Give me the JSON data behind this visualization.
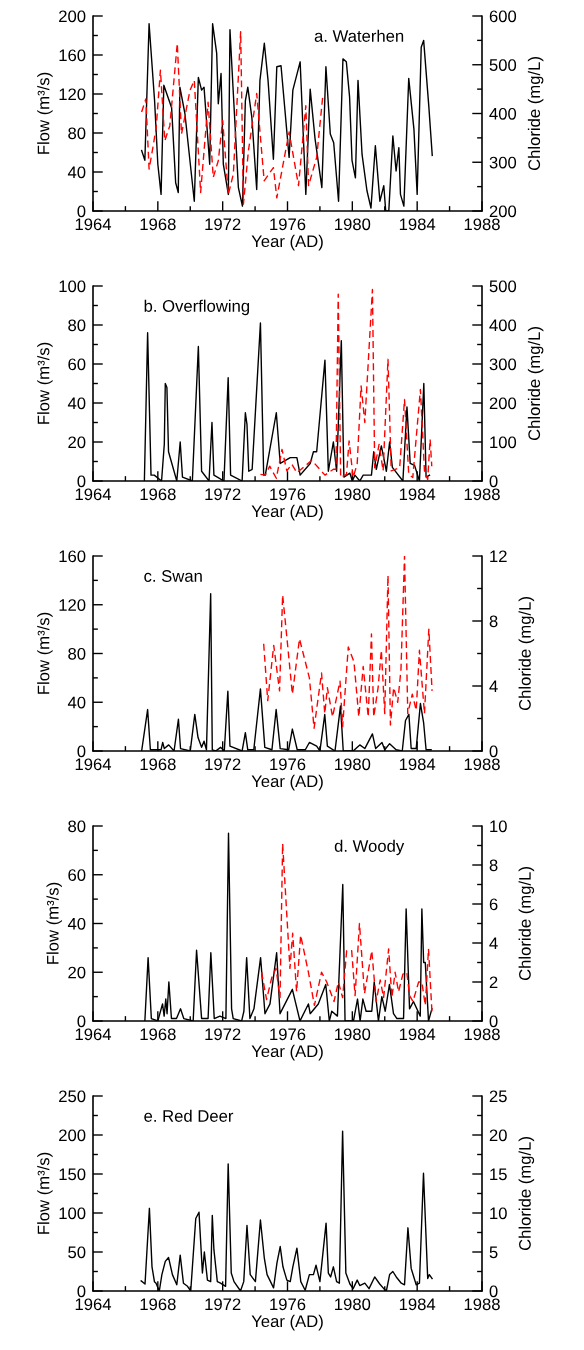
{
  "chart_data": [
    {
      "type": "line",
      "title": "a. Waterhen",
      "xlabel": "Year (AD)",
      "ylabel": "Flow (m³/s)",
      "y2label": "Chloride (mg/L)",
      "xlim": [
        1964,
        1988
      ],
      "xticks": [
        1964,
        {
          "value": 1966,
          "label": null
        },
        1968,
        {
          "value": 1970,
          "label": null
        },
        1972,
        {
          "value": 1974,
          "label": null
        },
        1976,
        {
          "value": 1978,
          "label": null
        },
        1980,
        {
          "value": 1982,
          "label": null
        },
        1984,
        {
          "value": 1986,
          "label": null
        },
        1988
      ],
      "ylim": [
        0,
        200
      ],
      "yticks": [
        0,
        {
          "value": 20,
          "label": null
        },
        40,
        {
          "value": 60,
          "label": null
        },
        80,
        {
          "value": 100,
          "label": null
        },
        120,
        {
          "value": 140,
          "label": null
        },
        160,
        {
          "value": 180,
          "label": null
        },
        200
      ],
      "y2lim": [
        200,
        600
      ],
      "y2ticks": [
        200,
        {
          "value": 250,
          "label": null
        },
        300,
        {
          "value": 350,
          "label": null
        },
        400,
        {
          "value": 450,
          "label": null
        },
        500,
        {
          "value": 550,
          "label": null
        },
        600
      ],
      "series": [
        {
          "color": "#000000",
          "line_style": "solid",
          "x": [
            1967.0,
            1967.2,
            1967.46,
            1967.8,
            1968.0,
            1968.2,
            1968.37,
            1968.85,
            1969.1,
            1969.26,
            1969.36,
            1969.67,
            1970.25,
            1970.5,
            1970.7,
            1970.85,
            1971.2,
            1971.38,
            1971.63,
            1971.73,
            1971.9,
            1972.04,
            1972.35,
            1972.45,
            1972.66,
            1972.97,
            1973.22,
            1973.4,
            1973.55,
            1973.8,
            1974.1,
            1974.3,
            1974.57,
            1974.8,
            1975.13,
            1975.34,
            1975.6,
            1976.1,
            1976.33,
            1976.78,
            1977.13,
            1977.4,
            1977.7,
            1978.12,
            1978.37,
            1978.64,
            1978.85,
            1979.15,
            1979.42,
            1979.63,
            1979.83,
            1979.98,
            1980.19,
            1980.35,
            1980.6,
            1980.9,
            1981.15,
            1981.42,
            1981.7,
            1981.94,
            1982.06,
            1982.25,
            1982.5,
            1982.7,
            1982.87,
            1982.97,
            1983.18,
            1983.48,
            1983.8,
            1984.0,
            1984.25,
            1984.4,
            1984.72,
            1984.93
          ],
          "values": [
            62,
            52,
            192,
            113,
            48,
            17,
            129,
            106,
            29,
            19,
            127,
            100,
            10,
            137,
            124,
            127,
            48,
            192,
            162,
            110,
            141,
            48,
            17,
            186,
            120,
            24,
            5,
            113,
            127,
            96,
            22,
            134,
            172,
            134,
            53,
            148,
            149,
            55,
            124,
            153,
            17,
            125,
            74,
            24,
            148,
            79,
            70,
            10,
            156,
            153,
            117,
            52,
            34,
            134,
            58,
            21,
            3,
            67,
            10,
            26,
            0,
            0,
            77,
            41,
            65,
            17,
            5,
            136,
            84,
            17,
            168,
            175,
            107,
            57
          ]
        },
        {
          "color": "#ff0000",
          "line_style": "dashed",
          "axis": "y2",
          "x": [
            1967.0,
            1967.26,
            1967.46,
            1967.7,
            1967.9,
            1968.16,
            1968.43,
            1968.74,
            1969.2,
            1969.46,
            1969.98,
            1970.25,
            1970.64,
            1971.1,
            1971.42,
            1971.73,
            1972.0,
            1972.35,
            1972.66,
            1973.11,
            1973.28,
            1973.59,
            1974.1,
            1974.56,
            1975.13,
            1975.34,
            1976.1,
            1976.68,
            1977.13,
            1977.3,
            1977.8,
            1978.18
          ],
          "values": [
            403,
            430,
            286,
            331,
            372,
            489,
            344,
            375,
            544,
            358,
            447,
            468,
            238,
            423,
            269,
            303,
            386,
            234,
            276,
            568,
            214,
            324,
            441,
            262,
            289,
            227,
            362,
            252,
            416,
            252,
            310,
            437
          ]
        }
      ]
    },
    {
      "type": "line",
      "title": "b. Overflowing",
      "xlabel": "Year (AD)",
      "ylabel": "Flow (m³/s)",
      "y2label": "Chloride (mg/L)",
      "xlim": [
        1964,
        1988
      ],
      "xticks": [
        1964,
        {
          "value": 1966,
          "label": null
        },
        1968,
        {
          "value": 1970,
          "label": null
        },
        1972,
        {
          "value": 1974,
          "label": null
        },
        1976,
        {
          "value": 1978,
          "label": null
        },
        1980,
        {
          "value": 1982,
          "label": null
        },
        1984,
        {
          "value": 1986,
          "label": null
        },
        1988
      ],
      "ylim": [
        0,
        100
      ],
      "yticks": [
        0,
        {
          "value": 10,
          "label": null
        },
        20,
        {
          "value": 30,
          "label": null
        },
        40,
        {
          "value": 50,
          "label": null
        },
        60,
        {
          "value": 70,
          "label": null
        },
        80,
        {
          "value": 90,
          "label": null
        },
        100
      ],
      "y2lim": [
        0,
        500
      ],
      "y2ticks": [
        0,
        {
          "value": 50,
          "label": null
        },
        100,
        {
          "value": 150,
          "label": null
        },
        200,
        {
          "value": 250,
          "label": null
        },
        300,
        {
          "value": 350,
          "label": null
        },
        400,
        {
          "value": 450,
          "label": null
        },
        500
      ],
      "series": [
        {
          "color": "#000000",
          "line_style": "solid",
          "x": [
            1967.17,
            1967.37,
            1967.58,
            1967.78,
            1968.23,
            1968.4,
            1968.46,
            1968.56,
            1968.66,
            1969.17,
            1969.38,
            1969.52,
            1970.13,
            1970.5,
            1970.7,
            1971.16,
            1971.34,
            1971.46,
            1972.08,
            1972.34,
            1972.49,
            1973.2,
            1973.4,
            1973.5,
            1973.61,
            1973.82,
            1974.33,
            1974.53,
            1974.63,
            1975.31,
            1975.55,
            1976.17,
            1976.58,
            1976.78,
            1977.4,
            1977.6,
            1977.8,
            1978.31,
            1978.52,
            1978.83,
            1979.03,
            1979.32,
            1979.48,
            1979.85,
            1980.0,
            1980.16,
            1980.46,
            1980.67,
            1981.18,
            1981.32,
            1981.48,
            1981.79,
            1982.1,
            1982.3,
            1982.47,
            1983.12,
            1983.37,
            1983.57,
            1983.84,
            1984.14,
            1984.41,
            1984.55,
            1984.76
          ],
          "values": [
            0,
            76,
            3,
            3,
            0,
            19,
            50,
            48,
            15,
            0,
            20,
            2,
            0,
            69,
            5,
            0,
            30,
            3,
            0,
            53,
            3,
            0,
            35,
            29,
            5,
            6,
            81,
            3,
            3,
            35,
            9,
            12,
            12,
            3,
            9,
            15,
            15,
            62,
            5,
            20,
            5,
            72,
            2,
            4,
            0,
            3,
            0,
            3,
            3,
            15,
            6,
            18,
            5,
            20,
            7,
            0,
            38,
            9,
            8,
            0,
            50,
            2,
            3
          ]
        },
        {
          "color": "#ff0000",
          "line_style": "dashed",
          "axis": "y2",
          "x": [
            1974.33,
            1974.63,
            1974.9,
            1975.31,
            1975.66,
            1975.96,
            1976.27,
            1976.58,
            1977.5,
            1978.31,
            1978.83,
            1978.99,
            1979.13,
            1979.28,
            1979.64,
            1979.8,
            1980.05,
            1980.3,
            1980.54,
            1980.77,
            1981.24,
            1981.38,
            1981.65,
            1981.9,
            1982.2,
            1982.4,
            1982.92,
            1983.22,
            1983.48,
            1983.73,
            1984.2,
            1984.45,
            1984.65,
            1984.8,
            1984.9
          ],
          "values": [
            17,
            15,
            38,
            7,
            81,
            26,
            43,
            21,
            53,
            15,
            30,
            30,
            479,
            9,
            17,
            103,
            9,
            44,
            244,
            150,
            491,
            34,
            94,
            26,
            312,
            26,
            34,
            209,
            17,
            9,
            235,
            26,
            4,
            107,
            38
          ]
        }
      ]
    },
    {
      "type": "line",
      "title": "c. Swan",
      "xlabel": "Year (AD)",
      "ylabel": "Flow (m³/s)",
      "y2label": "Chloride (mg/L)",
      "xlim": [
        1964,
        1988
      ],
      "xticks": [
        1964,
        {
          "value": 1966,
          "label": null
        },
        1968,
        {
          "value": 1970,
          "label": null
        },
        1972,
        {
          "value": 1974,
          "label": null
        },
        1976,
        {
          "value": 1978,
          "label": null
        },
        1980,
        {
          "value": 1982,
          "label": null
        },
        1984,
        {
          "value": 1986,
          "label": null
        },
        1988
      ],
      "ylim": [
        0,
        160
      ],
      "yticks": [
        0,
        {
          "value": 20,
          "label": null
        },
        40,
        {
          "value": 60,
          "label": null
        },
        80,
        {
          "value": 100,
          "label": null
        },
        120,
        {
          "value": 140,
          "label": null
        },
        160
      ],
      "y2lim": [
        0,
        12
      ],
      "y2ticks": [
        0,
        {
          "value": 2,
          "label": null
        },
        4,
        {
          "value": 6,
          "label": null
        },
        8,
        {
          "value": 10,
          "label": null
        },
        12
      ],
      "series": [
        {
          "color": "#000000",
          "line_style": "solid",
          "x": [
            1967.0,
            1967.37,
            1967.54,
            1968.2,
            1968.3,
            1968.4,
            1968.67,
            1969.0,
            1969.27,
            1969.4,
            1970.0,
            1970.28,
            1970.48,
            1970.7,
            1970.85,
            1971.0,
            1971.26,
            1971.36,
            1971.57,
            1971.87,
            1972.1,
            1972.32,
            1972.45,
            1973.2,
            1973.4,
            1973.55,
            1973.92,
            1974.33,
            1974.6,
            1975.04,
            1975.3,
            1975.55,
            1976.07,
            1976.3,
            1976.6,
            1977.1,
            1977.35,
            1977.8,
            1978.0,
            1978.3,
            1978.46,
            1978.93,
            1979.27,
            1979.44,
            1980.05,
            1980.46,
            1980.77,
            1981.24,
            1981.44,
            1981.83,
            1982.0,
            1982.3,
            1982.7,
            1983.08,
            1983.28,
            1983.49,
            1983.63,
            1983.94,
            1984.2,
            1984.4,
            1984.55,
            1984.86
          ],
          "values": [
            0,
            34,
            1,
            1,
            7,
            2,
            5,
            0,
            26,
            2,
            0,
            30,
            11,
            3,
            8,
            1,
            129,
            1,
            0,
            3,
            0,
            49,
            4,
            0,
            15,
            1,
            1,
            51,
            3,
            1,
            34,
            2,
            1,
            18,
            1,
            1,
            7,
            4,
            0,
            30,
            4,
            0,
            37,
            0,
            0,
            5,
            2,
            14,
            2,
            7,
            1,
            6,
            1,
            0,
            25,
            30,
            2,
            2,
            39,
            23,
            1,
            1
          ]
        },
        {
          "color": "#ff0000",
          "line_style": "dashed",
          "axis": "y2",
          "x": [
            1974.53,
            1974.78,
            1975.15,
            1975.51,
            1975.7,
            1975.96,
            1976.3,
            1976.74,
            1977.35,
            1977.64,
            1978.1,
            1978.3,
            1978.46,
            1978.78,
            1979.24,
            1979.4,
            1979.75,
            1980.1,
            1980.4,
            1980.67,
            1980.98,
            1981.18,
            1981.32,
            1981.59,
            1981.79,
            1982.0,
            1982.2,
            1982.35,
            1982.55,
            1982.8,
            1983.0,
            1983.22,
            1983.42,
            1983.7,
            1983.94,
            1984.14,
            1984.45,
            1984.72,
            1984.92
          ],
          "values": [
            6.6,
            3.1,
            6.5,
            3.7,
            9.6,
            7.0,
            3.5,
            6.9,
            4.5,
            1.4,
            4.8,
            2.3,
            3.9,
            2.1,
            4.3,
            1.5,
            6.4,
            5.5,
            2.1,
            5.2,
            2.1,
            7.2,
            2.1,
            3.9,
            6.2,
            2.3,
            10.8,
            1.6,
            3.9,
            3.0,
            5.0,
            12.0,
            2.3,
            3.5,
            2.5,
            6.2,
            2.3,
            7.5,
            3.7
          ]
        }
      ]
    },
    {
      "type": "line",
      "title": "d. Woody",
      "xlabel": "Year (AD)",
      "ylabel": "Flow (m³/s)",
      "y2label": "Chloride (mg/L)",
      "xlim": [
        1964,
        1988
      ],
      "xticks": [
        1964,
        {
          "value": 1966,
          "label": null
        },
        1968,
        {
          "value": 1970,
          "label": null
        },
        1972,
        {
          "value": 1974,
          "label": null
        },
        1976,
        {
          "value": 1978,
          "label": null
        },
        1980,
        {
          "value": 1982,
          "label": null
        },
        1984,
        {
          "value": 1986,
          "label": null
        },
        1988
      ],
      "ylim": [
        0,
        80
      ],
      "yticks": [
        0,
        {
          "value": 10,
          "label": null
        },
        20,
        {
          "value": 30,
          "label": null
        },
        40,
        {
          "value": 50,
          "label": null
        },
        60,
        {
          "value": 70,
          "label": null
        },
        80
      ],
      "y2lim": [
        0,
        10
      ],
      "y2ticks": [
        0,
        {
          "value": 1,
          "label": null
        },
        2,
        {
          "value": 3,
          "label": null
        },
        4,
        {
          "value": 5,
          "label": null
        },
        6,
        {
          "value": 7,
          "label": null
        },
        8,
        {
          "value": 9,
          "label": null
        },
        10
      ],
      "series": [
        {
          "color": "#000000",
          "line_style": "solid",
          "x": [
            1967.2,
            1967.4,
            1967.6,
            1968.0,
            1968.29,
            1968.39,
            1968.49,
            1968.57,
            1968.68,
            1968.84,
            1969.15,
            1969.4,
            1969.6,
            1970.18,
            1970.39,
            1970.7,
            1971.1,
            1971.27,
            1971.48,
            1971.83,
            1972.2,
            1972.36,
            1972.55,
            1972.65,
            1973.17,
            1973.31,
            1973.48,
            1973.68,
            1973.93,
            1974.34,
            1974.61,
            1974.92,
            1975.33,
            1975.54,
            1976.3,
            1976.77,
            1977.29,
            1977.4,
            1977.9,
            1978.36,
            1978.58,
            1978.73,
            1979.08,
            1979.41,
            1979.55,
            1980.07,
            1980.32,
            1980.48,
            1980.65,
            1980.85,
            1981.2,
            1981.35,
            1981.61,
            1981.82,
            1982.03,
            1982.29,
            1982.54,
            1982.75,
            1983.16,
            1983.32,
            1983.53,
            1983.77,
            1984.19,
            1984.29,
            1984.4,
            1984.5,
            1984.7,
            1984.91
          ],
          "values": [
            0,
            26,
            1,
            0,
            7,
            2,
            9,
            3,
            16,
            1,
            1,
            5,
            1,
            0,
            29,
            1,
            1,
            28,
            1,
            2,
            1,
            77,
            5,
            1,
            0,
            4,
            26,
            1,
            5,
            26,
            3,
            7,
            28,
            3,
            13,
            0,
            7,
            3,
            7,
            15,
            0,
            4,
            2,
            56,
            0,
            0,
            9,
            0,
            9,
            4,
            4,
            16,
            0,
            10,
            4,
            15,
            3,
            1,
            1,
            46,
            5,
            8,
            2,
            46,
            24,
            24,
            0,
            5
          ]
        },
        {
          "color": "#ff0000",
          "line_style": "dashed",
          "axis": "y2",
          "x": [
            1974.4,
            1974.71,
            1975.02,
            1975.29,
            1975.54,
            1975.7,
            1976.15,
            1976.32,
            1976.56,
            1976.81,
            1977.29,
            1977.66,
            1978.1,
            1978.42,
            1978.87,
            1979.14,
            1979.4,
            1979.65,
            1979.96,
            1980.17,
            1980.44,
            1980.75,
            1981.2,
            1981.47,
            1981.72,
            1981.93,
            1982.24,
            1982.44,
            1982.64,
            1982.85,
            1983.12,
            1983.36,
            1983.53,
            1983.74,
            1984.09,
            1984.29,
            1984.5,
            1984.7,
            1984.91
          ],
          "values": [
            2.5,
            1.1,
            2.2,
            2.7,
            1.2,
            9.1,
            2.7,
            4.5,
            1.5,
            4.4,
            2.5,
            0.8,
            2.5,
            2.0,
            1.0,
            2.0,
            1.2,
            3.6,
            3.6,
            1.3,
            5.0,
            1.4,
            3.6,
            1.0,
            2.1,
            1.2,
            3.7,
            1.2,
            2.5,
            1.5,
            2.4,
            2.5,
            1.3,
            1.0,
            2.0,
            2.0,
            0.8,
            3.7,
            0.5
          ]
        }
      ]
    },
    {
      "type": "line",
      "title": "e. Red Deer",
      "xlabel": "Year (AD)",
      "ylabel": "Flow (m³/s)",
      "y2label": "Chloride (mg/L)",
      "xlim": [
        1964,
        1988
      ],
      "xticks": [
        1964,
        {
          "value": 1966,
          "label": null
        },
        1968,
        {
          "value": 1970,
          "label": null
        },
        1972,
        {
          "value": 1974,
          "label": null
        },
        1976,
        {
          "value": 1978,
          "label": null
        },
        1980,
        {
          "value": 1982,
          "label": null
        },
        1984,
        {
          "value": 1986,
          "label": null
        },
        1988
      ],
      "ylim": [
        0,
        250
      ],
      "yticks": [
        0,
        {
          "value": 25,
          "label": null
        },
        50,
        {
          "value": 75,
          "label": null
        },
        100,
        {
          "value": 125,
          "label": null
        },
        150,
        {
          "value": 175,
          "label": null
        },
        200,
        {
          "value": 225,
          "label": null
        },
        250
      ],
      "y2lim": [
        0,
        25
      ],
      "y2ticks": [
        0,
        {
          "value": 2.5,
          "label": null
        },
        5,
        {
          "value": 7.5,
          "label": null
        },
        10,
        {
          "value": 12.5,
          "label": null
        },
        15,
        {
          "value": 17.5,
          "label": null
        },
        20,
        {
          "value": 22.5,
          "label": null
        },
        25
      ],
      "series": [
        {
          "color": "#000000",
          "line_style": "solid",
          "x": [
            1966.97,
            1967.21,
            1967.48,
            1967.64,
            1967.79,
            1967.89,
            1968.09,
            1968.25,
            1968.46,
            1968.66,
            1968.9,
            1969.17,
            1969.38,
            1969.58,
            1969.83,
            1970.03,
            1970.34,
            1970.54,
            1970.75,
            1970.87,
            1971.06,
            1971.26,
            1971.36,
            1971.46,
            1971.67,
            1971.87,
            1972.18,
            1972.34,
            1972.53,
            1972.7,
            1973.1,
            1973.3,
            1973.5,
            1973.7,
            1974.02,
            1974.33,
            1974.57,
            1974.74,
            1975.14,
            1975.35,
            1975.55,
            1975.72,
            1975.96,
            1976.17,
            1976.33,
            1976.58,
            1976.82,
            1977.09,
            1977.35,
            1977.6,
            1977.76,
            1978.0,
            1978.38,
            1978.52,
            1978.66,
            1978.83,
            1979.03,
            1979.2,
            1979.4,
            1979.6,
            1979.85,
            1980.05,
            1980.3,
            1980.46,
            1980.77,
            1981.03,
            1981.38,
            1981.69,
            1981.94,
            1982.1,
            1982.3,
            1982.5,
            1982.71,
            1983.02,
            1983.22,
            1983.43,
            1983.63,
            1983.94,
            1984.14,
            1984.39,
            1984.65,
            1984.75,
            1984.92
          ],
          "values": [
            13,
            9,
            106,
            31,
            12,
            10,
            0,
            21,
            38,
            43,
            21,
            8,
            46,
            10,
            6,
            0,
            93,
            101,
            23,
            50,
            14,
            12,
            97,
            53,
            12,
            10,
            6,
            163,
            23,
            12,
            0,
            12,
            84,
            21,
            12,
            91,
            42,
            21,
            4,
            36,
            57,
            31,
            14,
            12,
            31,
            55,
            12,
            1,
            21,
            21,
            33,
            12,
            87,
            23,
            18,
            31,
            12,
            10,
            205,
            23,
            9,
            3,
            14,
            7,
            10,
            3,
            18,
            9,
            3,
            0,
            21,
            25,
            18,
            10,
            8,
            81,
            29,
            8,
            10,
            151,
            16,
            21,
            16
          ]
        }
      ]
    }
  ]
}
